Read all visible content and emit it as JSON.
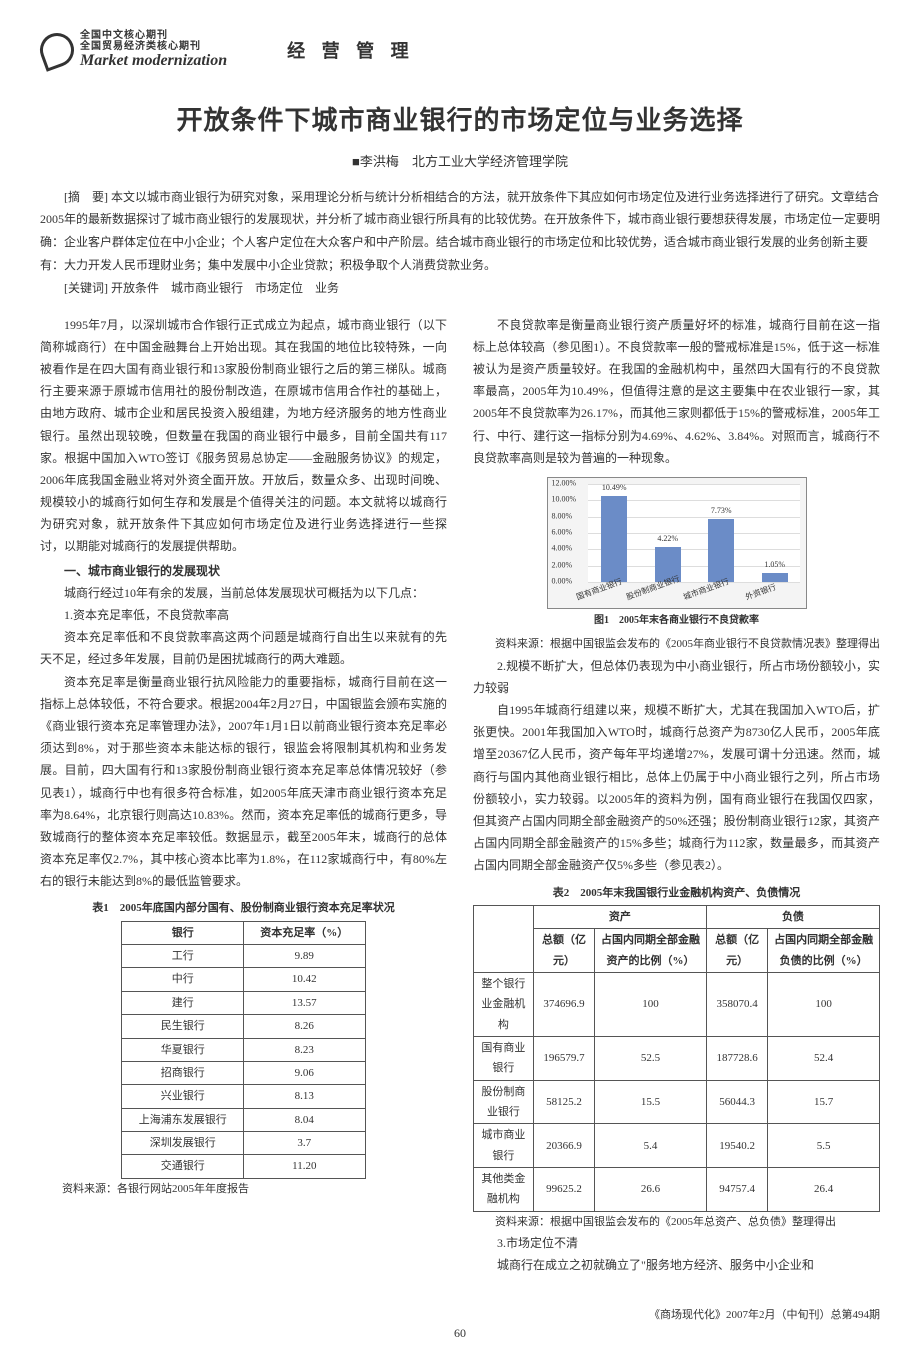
{
  "header": {
    "logo_cn1": "全国中文核心期刊",
    "logo_cn2": "全国贸易经济类核心期刊",
    "logo_en": "Market modernization",
    "section": "经 营 管 理"
  },
  "title": "开放条件下城市商业银行的市场定位与业务选择",
  "author_prefix": "■",
  "author": "李洪梅",
  "affiliation": "北方工业大学经济管理学院",
  "abstract_label": "[摘　要]",
  "abstract": "本文以城市商业银行为研究对象，采用理论分析与统计分析相结合的方法，就开放条件下其应如何市场定位及进行业务选择进行了研究。文章结合2005年的最新数据探讨了城市商业银行的发展现状，并分析了城市商业银行所具有的比较优势。在开放条件下，城市商业银行要想获得发展，市场定位一定要明确：企业客户群体定位在中小企业；个人客户定位在大众客户和中产阶层。结合城市商业银行的市场定位和比较优势，适合城市商业银行发展的业务创新主要有：大力开发人民币理财业务；集中发展中小企业贷款；积极争取个人消费贷款业务。",
  "keywords_label": "[关键词]",
  "keywords": "开放条件　城市商业银行　市场定位　业务",
  "left": {
    "p1": "1995年7月，以深圳城市合作银行正式成立为起点，城市商业银行（以下简称城商行）在中国金融舞台上开始出现。其在我国的地位比较特殊，一向被看作是在四大国有商业银行和13家股份制商业银行之后的第三梯队。城商行主要来源于原城市信用社的股份制改造，在原城市信用合作社的基础上，由地方政府、城市企业和居民投资入股组建，为地方经济服务的地方性商业银行。虽然出现较晚，但数量在我国的商业银行中最多，目前全国共有117家。根据中国加入WTO签订《服务贸易总协定——金融服务协议》的规定，2006年底我国金融业将对外资全面开放。开放后，数量众多、出现时间晚、规模较小的城商行如何生存和发展是个值得关注的问题。本文就将以城商行为研究对象，就开放条件下其应如何市场定位及进行业务选择进行一些探讨，以期能对城商行的发展提供帮助。",
    "h1": "一、城市商业银行的发展现状",
    "p2": "城商行经过10年有余的发展，当前总体发展现状可概括为以下几点：",
    "s1": "1.资本充足率低，不良贷款率高",
    "p3": "资本充足率低和不良贷款率高这两个问题是城商行自出生以来就有的先天不足，经过多年发展，目前仍是困扰城商行的两大难题。",
    "p4": "资本充足率是衡量商业银行抗风险能力的重要指标，城商行目前在这一指标上总体较低，不符合要求。根据2004年2月27日，中国银监会颁布实施的《商业银行资本充足率管理办法》，2007年1月1日以前商业银行资本充足率必须达到8%，对于那些资本未能达标的银行，银监会将限制其机构和业务发展。目前，四大国有行和13家股份制商业银行资本充足率总体情况较好（参见表1），城商行中也有很多符合标准，如2005年底天津市商业银行资本充足率为8.64%，北京银行则高达10.83%。然而，资本充足率低的城商行更多，导致城商行的整体资本充足率较低。数据显示，截至2005年末，城商行的总体资本充足率仅2.7%，其中核心资本比率为1.8%，在112家城商行中，有80%左右的银行未能达到8%的最低监管要求。",
    "t1_caption": "表1　2005年底国内部分国有、股份制商业银行资本充足率状况",
    "t1_source": "资料来源：各银行网站2005年年度报告"
  },
  "right": {
    "p1": "不良贷款率是衡量商业银行资产质量好坏的标准，城商行目前在这一指标上总体较高（参见图1）。不良贷款率一般的警戒标准是15%，低于这一标准被认为是资产质量较好。在我国的金融机构中，虽然四大国有行的不良贷款率最高，2005年为10.49%，但值得注意的是这主要集中在农业银行一家，其2005年不良贷款率为26.17%，而其他三家则都低于15%的警戒标准，2005年工行、中行、建行这一指标分别为4.69%、4.62%、3.84%。对照而言，城商行不良贷款率高则是较为普遍的一种现象。",
    "fig1_caption": "图1　2005年末各商业银行不良贷款率",
    "fig1_source": "资料来源：根据中国银监会发布的《2005年商业银行不良贷款情况表》整理得出",
    "s2": "2.规模不断扩大，但总体仍表现为中小商业银行，所占市场份额较小，实力较弱",
    "p2": "自1995年城商行组建以来，规模不断扩大，尤其在我国加入WTO后，扩张更快。2001年我国加入WTO时，城商行总资产为8730亿人民币，2005年底增至20367亿人民币，资产每年平均递增27%，发展可谓十分迅速。然而，城商行与国内其他商业银行相比，总体上仍属于中小商业银行之列，所占市场份额较小，实力较弱。以2005年的资料为例，国有商业银行在我国仅四家，但其资产占国内同期全部金融资产的50%还强；股份制商业银行12家，其资产占国内同期全部金融资产的15%多些；城商行为112家，数量最多，而其资产占国内同期全部金融资产仅5%多些（参见表2）。",
    "t2_caption": "表2　2005年末我国银行业金融机构资产、负债情况",
    "t2_source": "资料来源：根据中国银监会发布的《2005年总资产、总负债》整理得出",
    "s3": "3.市场定位不清",
    "p3": "城商行在成立之初就确立了\"服务地方经济、服务中小企业和"
  },
  "table1": {
    "headers": [
      "银行",
      "资本充足率（%）"
    ],
    "rows": [
      [
        "工行",
        "9.89"
      ],
      [
        "中行",
        "10.42"
      ],
      [
        "建行",
        "13.57"
      ],
      [
        "民生银行",
        "8.26"
      ],
      [
        "华夏银行",
        "8.23"
      ],
      [
        "招商银行",
        "9.06"
      ],
      [
        "兴业银行",
        "8.13"
      ],
      [
        "上海浦东发展银行",
        "8.04"
      ],
      [
        "深圳发展银行",
        "3.7"
      ],
      [
        "交通银行",
        "11.20"
      ]
    ]
  },
  "chart": {
    "ylim": [
      0,
      12
    ],
    "ytick_step": 2,
    "yticks_labels": [
      "0.00%",
      "2.00%",
      "4.00%",
      "6.00%",
      "8.00%",
      "10.00%",
      "12.00%"
    ],
    "categories": [
      "国有商业银行",
      "股份制商业银行",
      "城市商业银行",
      "外资银行"
    ],
    "values": [
      10.49,
      4.22,
      7.73,
      1.05
    ],
    "value_labels": [
      "10.49%",
      "4.22%",
      "7.73%",
      "1.05%"
    ],
    "bar_color": "#6b8cc7",
    "bg_color": "#ffffff",
    "grid_color": "#dddddd"
  },
  "table2": {
    "top_headers": [
      "",
      "资产",
      "",
      "负债",
      ""
    ],
    "sub_headers": [
      "",
      "总额（亿元）",
      "占国内同期全部金融资产的比例（%）",
      "总额（亿元）",
      "占国内同期全部金融负债的比例（%）"
    ],
    "rows": [
      [
        "整个银行业金融机构",
        "374696.9",
        "100",
        "358070.4",
        "100"
      ],
      [
        "国有商业银行",
        "196579.7",
        "52.5",
        "187728.6",
        "52.4"
      ],
      [
        "股份制商业银行",
        "58125.2",
        "15.5",
        "56044.3",
        "15.7"
      ],
      [
        "城市商业银行",
        "20366.9",
        "5.4",
        "19540.2",
        "5.5"
      ],
      [
        "其他类金融机构",
        "99625.2",
        "26.6",
        "94757.4",
        "26.4"
      ]
    ]
  },
  "footer": {
    "issue": "《商场现代化》2007年2月（中旬刊）总第494期",
    "page": "60"
  }
}
